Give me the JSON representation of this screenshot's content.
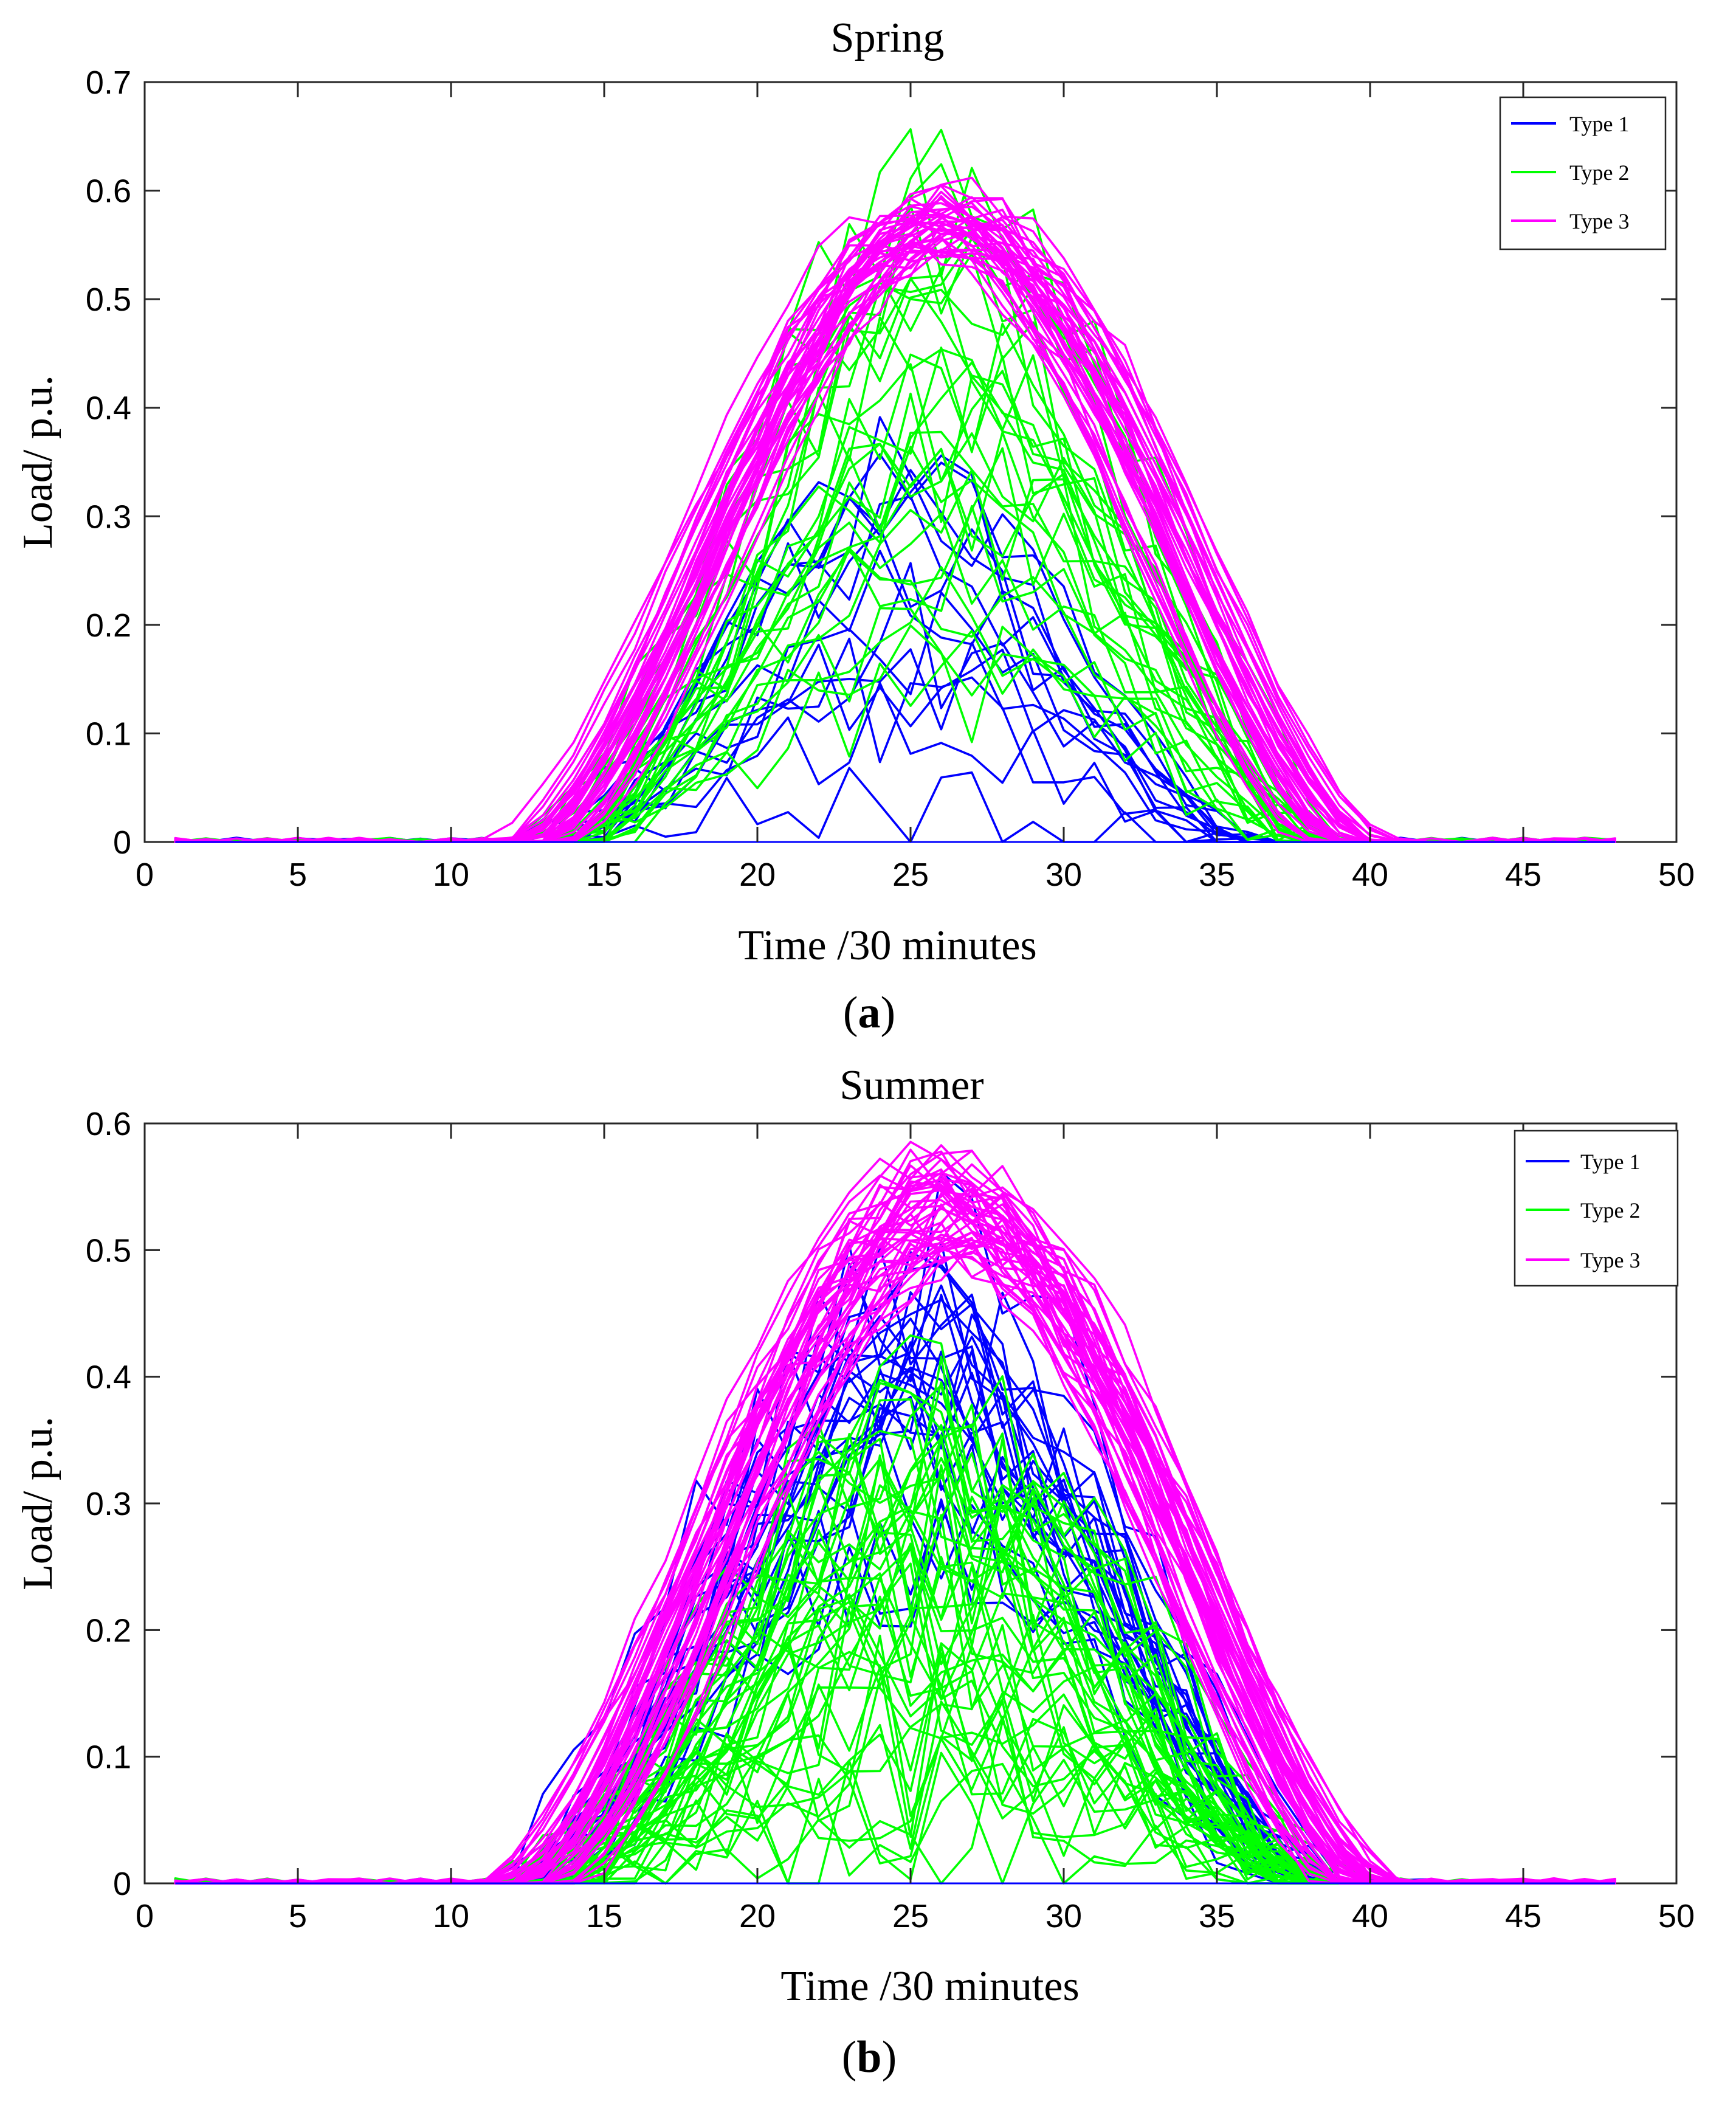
{
  "chart_data": [
    {
      "type": "line",
      "title": "Spring",
      "caption": "a",
      "xlabel": "Time /30 minutes",
      "ylabel": "Load/ p.u.",
      "xlim": [
        0,
        50
      ],
      "ylim": [
        0,
        0.7
      ],
      "xticks": [
        "0",
        "5",
        "10",
        "15",
        "20",
        "25",
        "30",
        "35",
        "40",
        "45",
        "50"
      ],
      "yticks": [
        "0",
        "0.1",
        "0.2",
        "0.3",
        "0.4",
        "0.5",
        "0.6",
        "0.7"
      ],
      "grid": false,
      "legend_position": "top-right",
      "legend": [
        "Type 1",
        "Type 2",
        "Type 3"
      ],
      "series": [
        {
          "name": "Type 1",
          "color": "#0000ff",
          "curves": 14,
          "peak_mean": 0.2,
          "peak_spread": 0.32,
          "window": [
            13,
            36
          ],
          "noise": 0.07
        },
        {
          "name": "Type 2",
          "color": "#00ff00",
          "curves": 30,
          "peak_mean": 0.38,
          "peak_spread": 0.45,
          "window": [
            13.5,
            38.5
          ],
          "noise": 0.08
        },
        {
          "name": "Type 3",
          "color": "#ff00ff",
          "curves": 40,
          "peak_mean": 0.57,
          "peak_spread": 0.06,
          "window": [
            12.5,
            39.5
          ],
          "noise": 0.02
        }
      ]
    },
    {
      "type": "line",
      "title": "Summer",
      "caption": "b",
      "xlabel": "Time /30 minutes",
      "ylabel": "Load/ p.u.",
      "xlim": [
        0,
        50
      ],
      "ylim": [
        0,
        0.6
      ],
      "xticks": [
        "0",
        "5",
        "10",
        "15",
        "20",
        "25",
        "30",
        "35",
        "40",
        "45",
        "50"
      ],
      "yticks": [
        "0",
        "0.1",
        "0.2",
        "0.3",
        "0.4",
        "0.5",
        "0.6"
      ],
      "grid": false,
      "legend_position": "top-right",
      "legend": [
        "Type 1",
        "Type 2",
        "Type 3"
      ],
      "series": [
        {
          "name": "Type 1",
          "color": "#0000ff",
          "curves": 25,
          "peak_mean": 0.38,
          "peak_spread": 0.25,
          "window": [
            12.5,
            38
          ],
          "noise": 0.08
        },
        {
          "name": "Type 2",
          "color": "#00ff00",
          "curves": 45,
          "peak_mean": 0.2,
          "peak_spread": 0.35,
          "window": [
            13,
            38.5
          ],
          "noise": 0.09
        },
        {
          "name": "Type 3",
          "color": "#ff00ff",
          "curves": 45,
          "peak_mean": 0.53,
          "peak_spread": 0.08,
          "window": [
            12.5,
            40
          ],
          "noise": 0.025
        }
      ]
    }
  ]
}
